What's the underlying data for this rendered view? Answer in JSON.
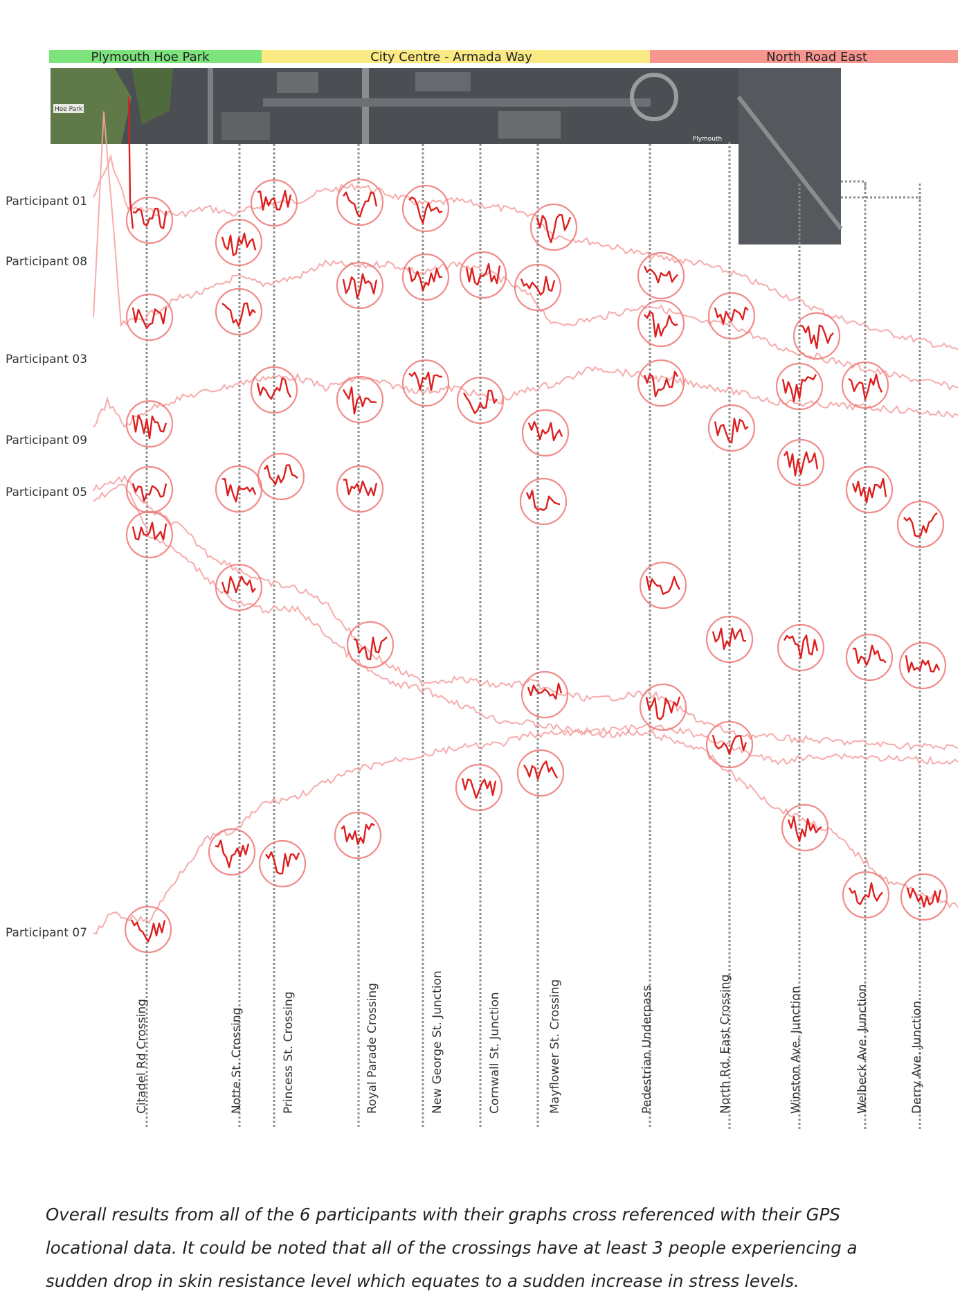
{
  "zones": [
    {
      "label": "Plymouth Hoe Park",
      "color": "#7de37d"
    },
    {
      "label": "City Centre - Armada Way",
      "color": "#fbe983"
    },
    {
      "label": "North Road East",
      "color": "#f7958f"
    }
  ],
  "map": {
    "labels": [
      "Hoe Park",
      "Plymouth"
    ]
  },
  "participants": [
    {
      "name": "Participant 01"
    },
    {
      "name": "Participant 08"
    },
    {
      "name": "Participant 03"
    },
    {
      "name": "Participant 09"
    },
    {
      "name": "Participant 05"
    },
    {
      "name": "Participant 07"
    }
  ],
  "chart_data": {
    "type": "line",
    "measure": "skin resistance level",
    "locations": [
      "Citadel Rd Crossing",
      "Notte St. Crossing",
      "Princess St. Crossing",
      "Royal Parade Crossing",
      "New George St. Junction",
      "Cornwall St. Junction",
      "Mayflower St. Crossing",
      "Pedestrian Underpass",
      "North Rd. East Crossing",
      "Winston Ave. Junction",
      "Welbeck Ave. Junction",
      "Derry Ave. Junction"
    ],
    "series": [
      {
        "name": "Participant 01"
      },
      {
        "name": "Participant 08"
      },
      {
        "name": "Participant 03"
      },
      {
        "name": "Participant 09"
      },
      {
        "name": "Participant 05"
      },
      {
        "name": "Participant 07"
      }
    ],
    "line_color": "#f5a3a3",
    "highlight_color": "#dd1e1e",
    "circle_color": "#ee7777"
  },
  "caption": "Overall results from all of the 6 participants with their graphs cross referenced with their GPS locational data. It could be noted that all of the crossings have at least 3 people experiencing a sudden drop in skin resistance level which equates to a sudden increase in stress levels."
}
